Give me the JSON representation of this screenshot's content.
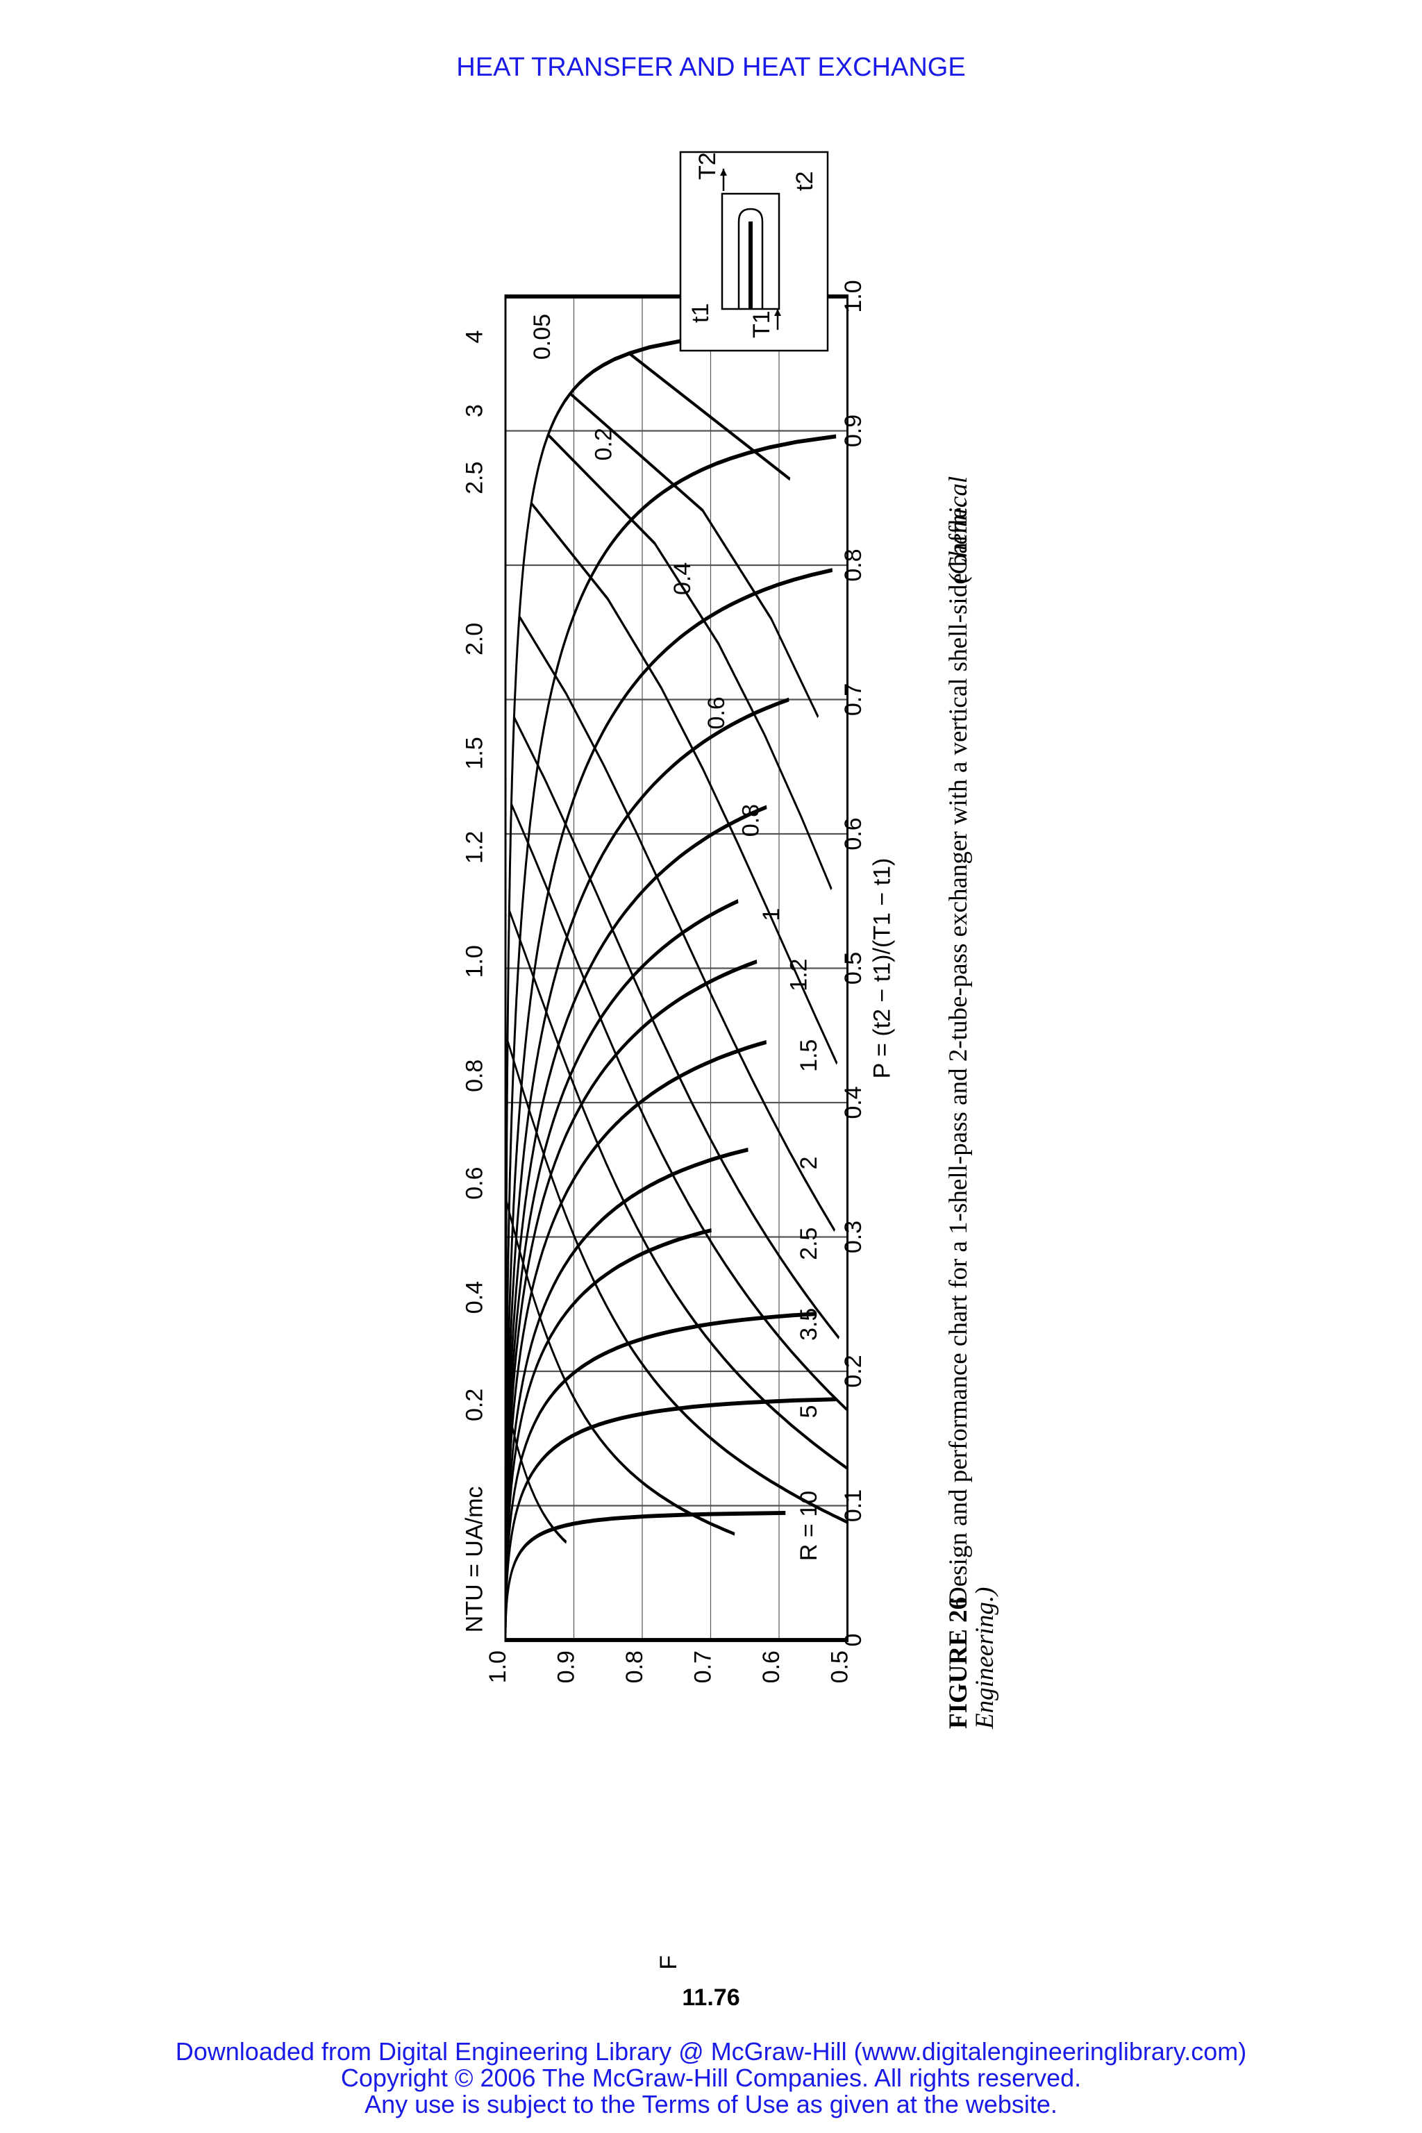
{
  "page": {
    "header": "HEAT TRANSFER AND HEAT EXCHANGE",
    "page_number": "11.76",
    "footer": [
      "Downloaded from Digital Engineering Library @ McGraw-Hill (www.digitalengineeringlibrary.com)",
      "Copyright © 2006 The McGraw-Hill Companies. All rights reserved.",
      "Any use is subject to the Terms of Use as given at the website."
    ]
  },
  "figure": {
    "label": "FIGURE 26",
    "caption": "Design and performance chart for a 1-shell-pass and 2-tube-pass exchanger with a vertical shell-side baffle.",
    "source_line1": "(Chemical",
    "source_line2": "Engineering.)"
  },
  "chart_data": {
    "type": "line",
    "orientation": "rotated 90° counter-clockwise on the page",
    "xlabel": "P = (t2 − t1)/(T1 − t1)",
    "ylabel": "F",
    "xlim": [
      0,
      1.0
    ],
    "ylim": [
      0.5,
      1.0
    ],
    "x_ticks": [
      "0",
      "0.1",
      "0.2",
      "0.3",
      "0.4",
      "0.5",
      "0.6",
      "0.7",
      "0.8",
      "0.9",
      "1.0"
    ],
    "y_ticks": [
      "0.5",
      "0.6",
      "0.7",
      "0.8",
      "0.9",
      "1.0"
    ],
    "grid": true,
    "ntu_axis_label": "NTU = UA/mc",
    "ntu_ticks": [
      "0.2",
      "0.4",
      "0.6",
      "0.8",
      "1.0",
      "1.2",
      "1.5",
      "2.0",
      "2.5",
      "3",
      "4"
    ],
    "R_family": [
      {
        "name": "R = 10",
        "Pmax": 0.095
      },
      {
        "name": "5",
        "Pmax": 0.18
      },
      {
        "name": "3.5",
        "Pmax": 0.245
      },
      {
        "name": "2.5",
        "Pmax": 0.305
      },
      {
        "name": "2",
        "Pmax": 0.365
      },
      {
        "name": "1.5",
        "Pmax": 0.445
      },
      {
        "name": "1.2",
        "Pmax": 0.505
      },
      {
        "name": "1",
        "Pmax": 0.55
      },
      {
        "name": "0.8",
        "Pmax": 0.62
      },
      {
        "name": "0.6",
        "Pmax": 0.7
      },
      {
        "name": "0.4",
        "Pmax": 0.8
      },
      {
        "name": "0.2",
        "Pmax": 0.9
      },
      {
        "name": "0.05",
        "Pmax": 0.98
      }
    ],
    "inset": {
      "labels": [
        "T1",
        "T2",
        "t1",
        "t2"
      ]
    }
  }
}
